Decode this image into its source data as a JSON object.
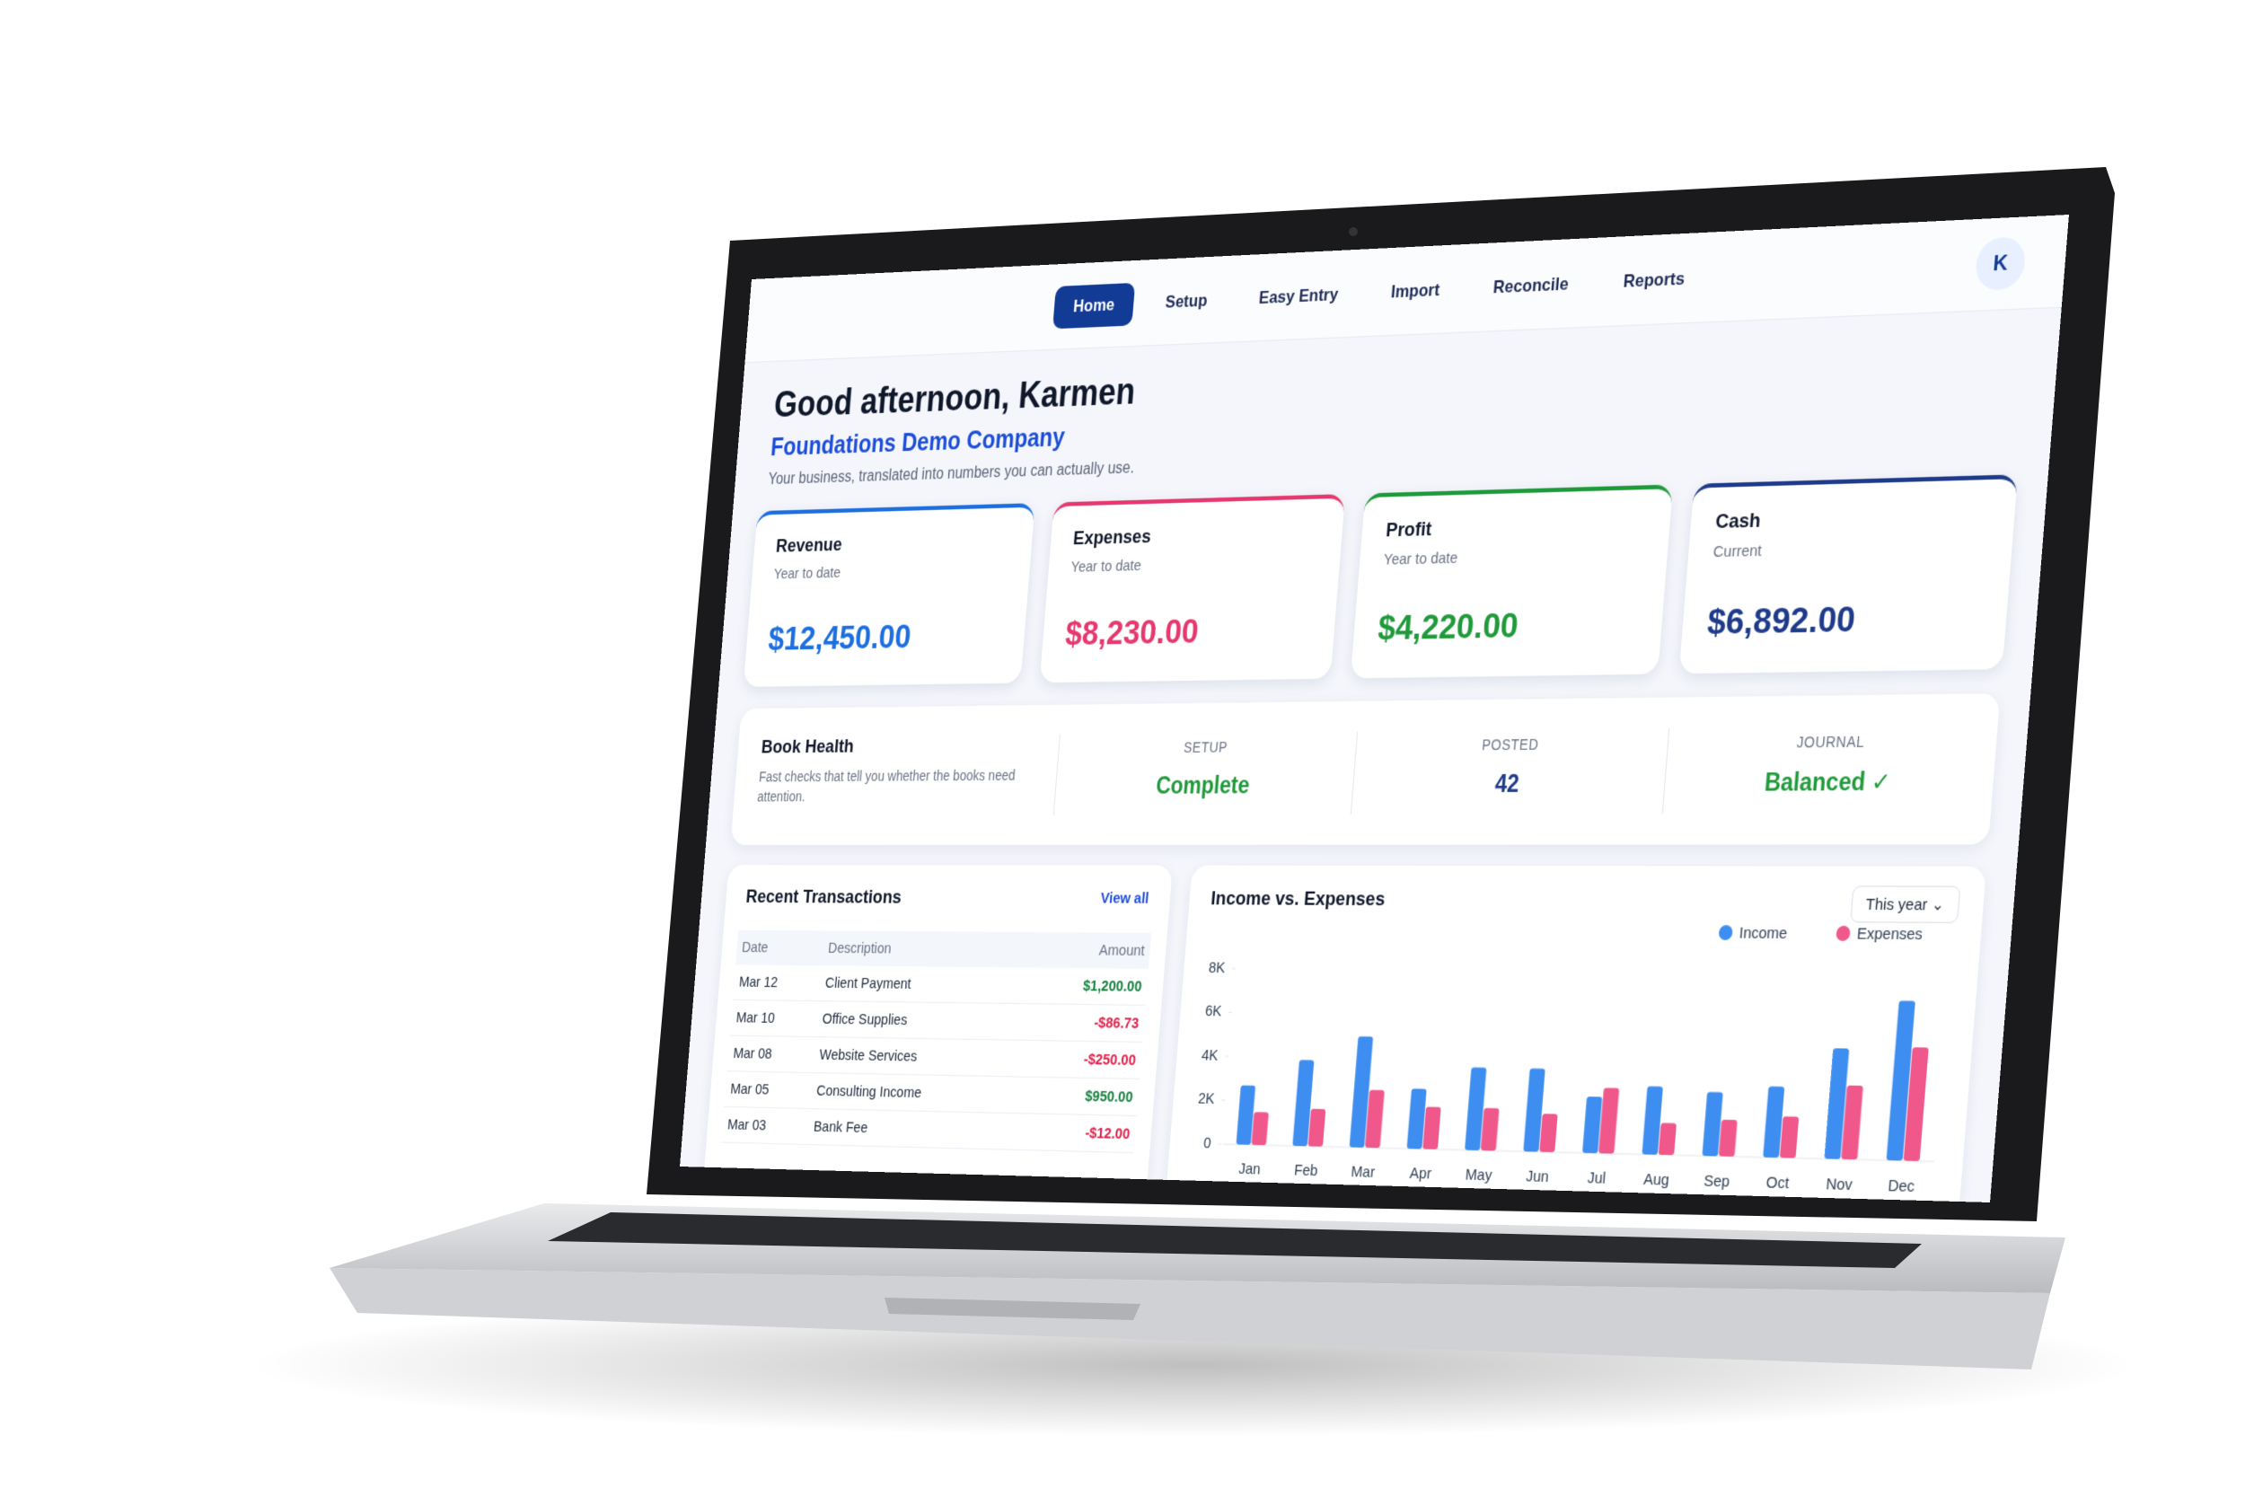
{
  "nav": {
    "items": [
      "Home",
      "Setup",
      "Easy Entry",
      "Import",
      "Reconcile",
      "Reports"
    ],
    "active": 0,
    "avatar": "K"
  },
  "header": {
    "greeting": "Good afternoon, Karmen",
    "company": "Foundations Demo Company",
    "tagline": "Your business, translated into numbers you can actually use."
  },
  "cards": [
    {
      "title": "Revenue",
      "subtitle": "Year to date",
      "value": "$12,450.00",
      "color": "#1d6fe0"
    },
    {
      "title": "Expenses",
      "subtitle": "Year to date",
      "value": "$8,230.00",
      "color": "#e5386f"
    },
    {
      "title": "Profit",
      "subtitle": "Year to date",
      "value": "$4,220.00",
      "color": "#1f9a3a"
    },
    {
      "title": "Cash",
      "subtitle": "Current",
      "value": "$6,892.00",
      "color": "#1e3a8a"
    }
  ],
  "book_health": {
    "title": "Book Health",
    "description": "Fast checks that tell you whether the books need attention.",
    "stats": [
      {
        "label": "SETUP",
        "value": "Complete",
        "color": "#1f9a3a"
      },
      {
        "label": "POSTED",
        "value": "42",
        "color": "#1e3a8a"
      },
      {
        "label": "JOURNAL",
        "value": "Balanced ✓",
        "color": "#1f9a3a"
      }
    ]
  },
  "transactions": {
    "title": "Recent Transactions",
    "link": "View all",
    "columns": [
      "Date",
      "Description",
      "Amount"
    ],
    "rows": [
      [
        "Mar 12",
        "Client Payment",
        "$1,200.00"
      ],
      [
        "Mar 10",
        "Office Supplies",
        "-$86.73"
      ],
      [
        "Mar 08",
        "Website Services",
        "-$250.00"
      ],
      [
        "Mar 05",
        "Consulting Income",
        "$950.00"
      ],
      [
        "Mar 03",
        "Bank Fee",
        "-$12.00"
      ]
    ]
  },
  "chart_data": {
    "type": "bar",
    "title": "Income vs. Expenses",
    "filter": "This year",
    "categories": [
      "Jan",
      "Feb",
      "Mar",
      "Apr",
      "May",
      "Jun",
      "Jul",
      "Aug",
      "Sep",
      "Oct",
      "Nov",
      "Dec"
    ],
    "series": [
      {
        "name": "Income",
        "color": "#3d8ef0",
        "values": [
          2700,
          3900,
          5000,
          2700,
          3700,
          3700,
          2500,
          3000,
          2800,
          3100,
          4800,
          6900
        ]
      },
      {
        "name": "Expenses",
        "color": "#f0578a",
        "values": [
          1500,
          1700,
          2600,
          1900,
          1900,
          1700,
          2900,
          1400,
          1600,
          1800,
          3200,
          4900
        ]
      }
    ],
    "ylim": [
      0,
      8000
    ],
    "yticks": [
      0,
      {
        "value": 2000,
        "label": "2K"
      },
      {
        "value": 4000,
        "label": "4K"
      },
      {
        "value": 6000,
        "label": "6K"
      },
      {
        "value": 8000,
        "label": "8K"
      }
    ],
    "grid": false,
    "legend": "top-right"
  }
}
